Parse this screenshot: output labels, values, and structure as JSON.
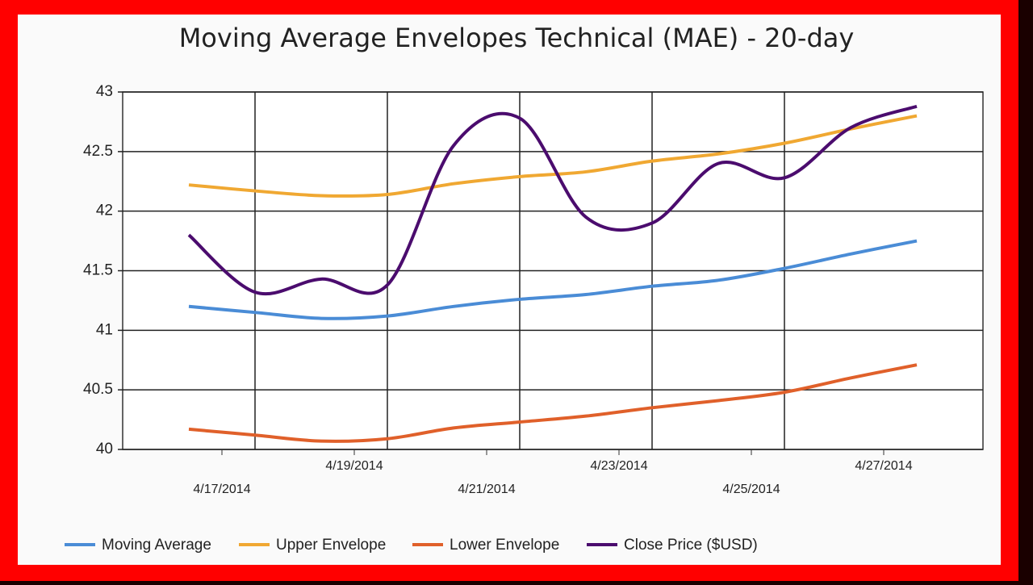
{
  "chart_data": {
    "type": "line",
    "title": "Moving Average Envelopes Technical (MAE) - 20-day",
    "x": [
      16.5,
      17.5,
      18.5,
      19.5,
      20.5,
      21.5,
      22.5,
      23.5,
      24.5,
      25.5,
      26.5,
      27.5
    ],
    "xlim": [
      15.5,
      28.5
    ],
    "xticks": [
      {
        "value": 17,
        "label": "4/17/2014"
      },
      {
        "value": 19,
        "label": "4/19/2014"
      },
      {
        "value": 21,
        "label": "4/21/2014"
      },
      {
        "value": 23,
        "label": "4/23/2014"
      },
      {
        "value": 25,
        "label": "4/25/2014"
      },
      {
        "value": 27,
        "label": "4/27/2014"
      }
    ],
    "xgrid": [
      17.5,
      19.5,
      21.5,
      23.5,
      25.5
    ],
    "ylim": [
      40,
      43
    ],
    "yticks": [
      40,
      40.5,
      41,
      41.5,
      42,
      42.5,
      43
    ],
    "grid": true,
    "legend": "bottom",
    "series": [
      {
        "name": "Moving Average",
        "color": "#4a8cd6",
        "values": [
          41.2,
          41.15,
          41.1,
          41.12,
          41.2,
          41.26,
          41.3,
          41.37,
          41.42,
          41.52,
          41.64,
          41.75
        ]
      },
      {
        "name": "Upper Envelope",
        "color": "#f0a832",
        "values": [
          42.22,
          42.17,
          42.13,
          42.14,
          42.23,
          42.29,
          42.33,
          42.42,
          42.48,
          42.57,
          42.69,
          42.8
        ]
      },
      {
        "name": "Lower Envelope",
        "color": "#e0602a",
        "values": [
          40.17,
          40.12,
          40.07,
          40.09,
          40.18,
          40.23,
          40.28,
          40.35,
          40.41,
          40.48,
          40.6,
          40.71
        ]
      },
      {
        "name": "Close Price ($USD)",
        "color": "#4b0c6e",
        "values": [
          41.8,
          41.32,
          41.43,
          41.38,
          42.55,
          42.78,
          41.95,
          41.9,
          42.4,
          42.28,
          42.7,
          42.88
        ]
      }
    ]
  }
}
